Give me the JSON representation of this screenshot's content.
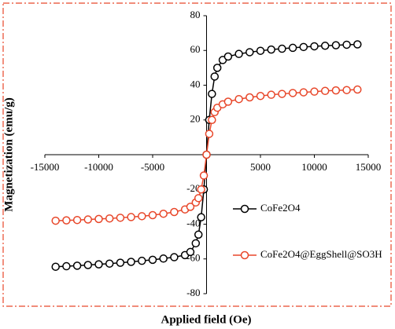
{
  "chart_data": {
    "type": "scatter",
    "xlabel": "Applied field (Oe)",
    "ylabel": "Magnetization (emu/g)",
    "xlim": [
      -15000,
      15000
    ],
    "xticks": [
      -15000,
      -10000,
      -5000,
      5000,
      10000,
      15000
    ],
    "ylim": [
      -80,
      80
    ],
    "yticks": [
      -80,
      -60,
      -40,
      -20,
      20,
      40,
      60,
      80
    ],
    "x": [
      -14000,
      -13000,
      -12000,
      -11000,
      -10000,
      -9000,
      -8000,
      -7000,
      -6000,
      -5000,
      -4000,
      -3000,
      -2000,
      -1500,
      -1000,
      -750,
      -500,
      -250,
      0,
      250,
      500,
      750,
      1000,
      1500,
      2000,
      3000,
      4000,
      5000,
      6000,
      7000,
      8000,
      9000,
      10000,
      11000,
      12000,
      13000,
      14000
    ],
    "series": [
      {
        "name": "CoFe2O4",
        "color": "#000000",
        "values": [
          -64.5,
          -64.2,
          -63.9,
          -63.5,
          -63.1,
          -62.7,
          -62.2,
          -61.7,
          -61.1,
          -60.5,
          -59.8,
          -59,
          -57.8,
          -56,
          -51,
          -46,
          -36,
          -20,
          0,
          20,
          35,
          45,
          50,
          54.5,
          56.5,
          58,
          59,
          59.8,
          60.5,
          61,
          61.5,
          62,
          62.4,
          62.7,
          63,
          63.3,
          63.5
        ]
      },
      {
        "name": "CoFe2O4@EggShell@SO3H",
        "color": "#e8472a",
        "values": [
          -38,
          -37.8,
          -37.6,
          -37.3,
          -37,
          -36.7,
          -36.3,
          -35.9,
          -35.4,
          -34.8,
          -34,
          -33,
          -31.5,
          -30,
          -27.5,
          -25,
          -20,
          -12,
          0,
          12,
          20,
          24.5,
          27,
          29,
          30.5,
          32,
          33,
          33.8,
          34.5,
          35,
          35.5,
          35.9,
          36.3,
          36.7,
          37,
          37.2,
          37.5
        ]
      }
    ]
  }
}
